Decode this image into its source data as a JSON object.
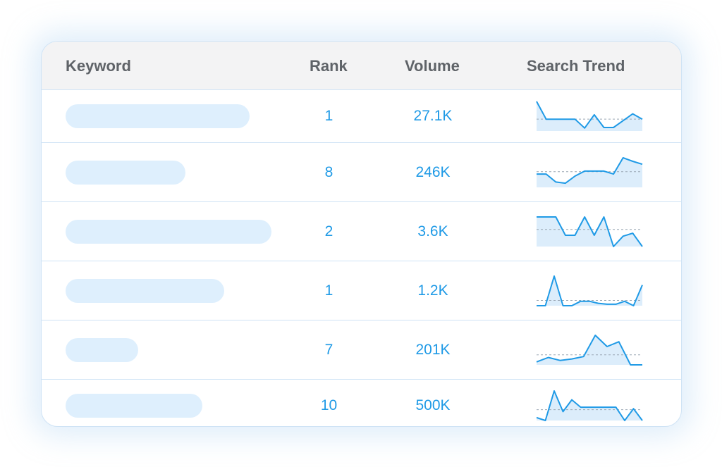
{
  "table": {
    "columns": {
      "keyword": "Keyword",
      "rank": "Rank",
      "volume": "Volume",
      "trend": "Search Trend"
    },
    "colors": {
      "accent": "#1f9ae6",
      "pill": "#deeffd",
      "trend_fill": "#dcedfb",
      "baseline": "#9aa7b4"
    },
    "rows": [
      {
        "keyword_bar": 0.66,
        "rank": "1",
        "volume": "27.1K",
        "trend": [
          100,
          40,
          40,
          40,
          40,
          10,
          55,
          12,
          12,
          35,
          58,
          40
        ]
      },
      {
        "keyword_bar": 0.43,
        "rank": "8",
        "volume": "246K",
        "trend": [
          45,
          45,
          18,
          14,
          38,
          55,
          55,
          55,
          45,
          100,
          88,
          78
        ]
      },
      {
        "keyword_bar": 0.74,
        "rank": "2",
        "volume": "3.6K",
        "trend": [
          100,
          100,
          100,
          38,
          38,
          100,
          38,
          100,
          0,
          35,
          45,
          0
        ]
      },
      {
        "keyword_bar": 0.57,
        "rank": "1",
        "volume": "1.2K",
        "trend": [
          0,
          0,
          100,
          0,
          0,
          15,
          15,
          8,
          5,
          5,
          15,
          0,
          70
        ]
      },
      {
        "keyword_bar": 0.26,
        "rank": "7",
        "volume": "201K",
        "trend": [
          10,
          25,
          15,
          20,
          28,
          100,
          62,
          78,
          0,
          0
        ]
      },
      {
        "keyword_bar": 0.49,
        "rank": "10",
        "volume": "500K",
        "trend": [
          10,
          0,
          100,
          30,
          70,
          45,
          45,
          45,
          45,
          45,
          0,
          40,
          0
        ]
      }
    ]
  }
}
